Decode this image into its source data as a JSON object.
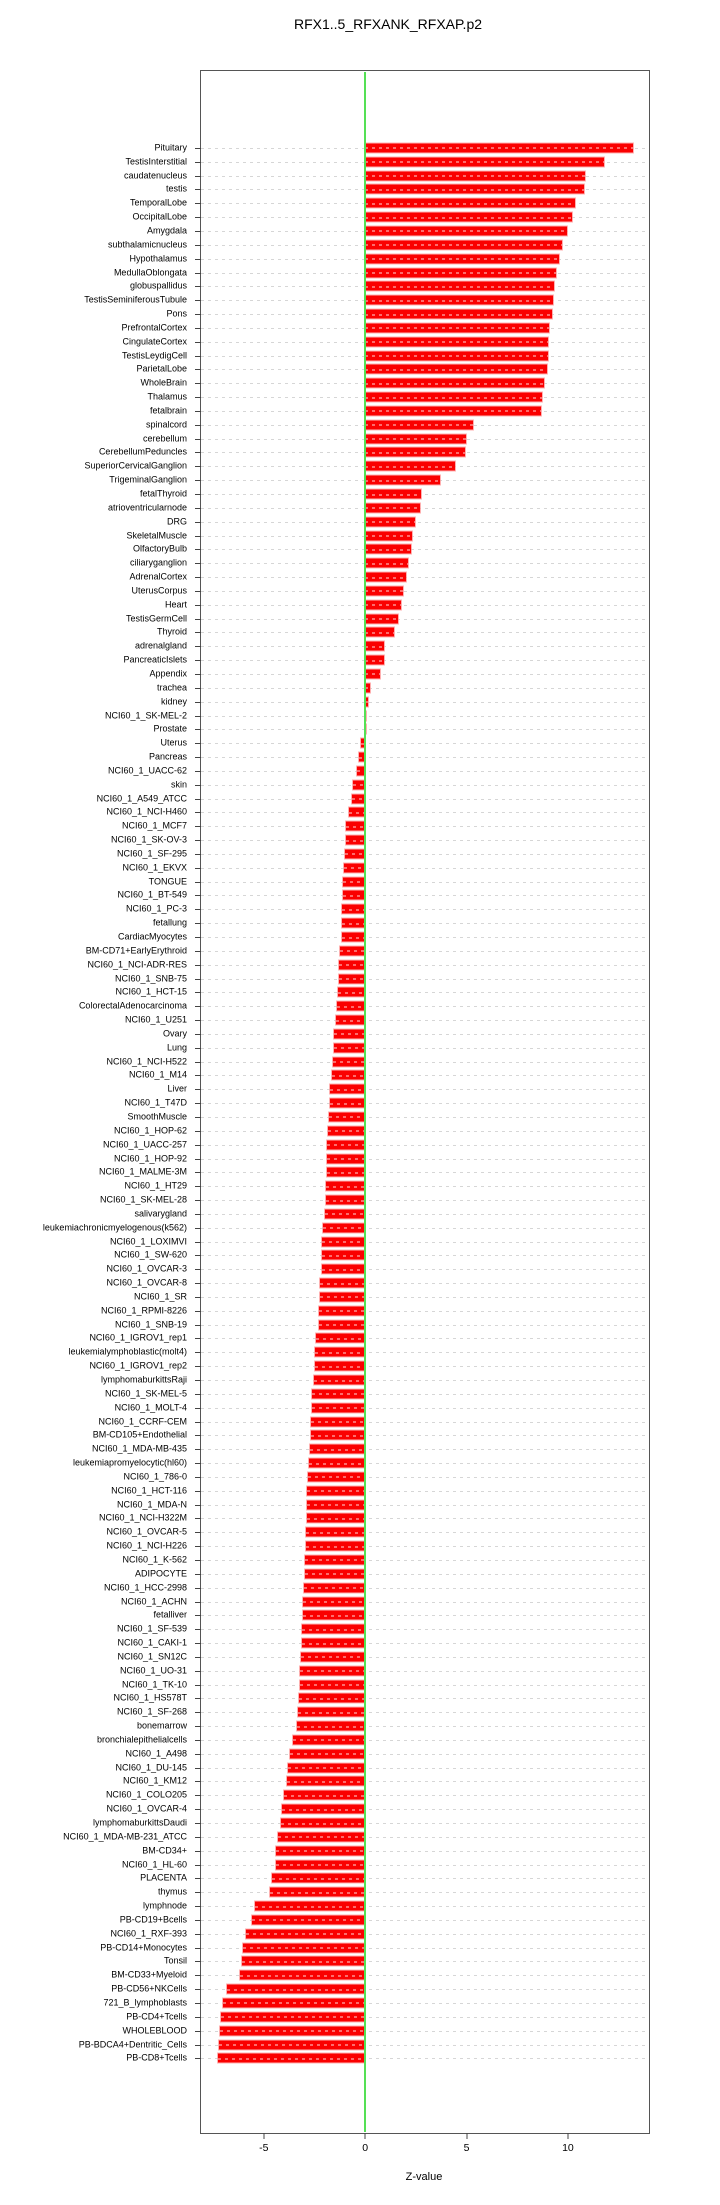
{
  "title": "RFX1..5_RFXANK_RFXAP.p2",
  "chart_data": {
    "type": "bar",
    "orientation": "horizontal",
    "title": "RFX1..5_RFXANK_RFXAP.p2",
    "xlabel": "Z-value",
    "ylabel": "",
    "xlim": [
      -8.1,
      14.0
    ],
    "x_ticks": [
      -5,
      0,
      5,
      10
    ],
    "grid": true,
    "legend": false,
    "bar_color": "#fa0000",
    "bar_edge_color": "#ff9696",
    "zero_line_color": "#55e055",
    "grid_color": "#d6d6d6",
    "categories": [
      "Pituitary",
      "TestisInterstitial",
      "caudatenucleus",
      "testis",
      "TemporalLobe",
      "OccipitalLobe",
      "Amygdala",
      "subthalamicnucleus",
      "Hypothalamus",
      "MedullaOblongata",
      "globuspallidus",
      "TestisSeminiferousTubule",
      "Pons",
      "PrefrontalCortex",
      "CingulateCortex",
      "TestisLeydigCell",
      "ParietalLobe",
      "WholeBrain",
      "Thalamus",
      "fetalbrain",
      "spinalcord",
      "cerebellum",
      "CerebellumPeduncles",
      "SuperiorCervicalGanglion",
      "TrigeminalGanglion",
      "fetalThyroid",
      "atrioventricularnode",
      "DRG",
      "SkeletalMuscle",
      "OlfactoryBulb",
      "ciliaryganglion",
      "AdrenalCortex",
      "UterusCorpus",
      "Heart",
      "TestisGermCell",
      "Thyroid",
      "adrenalgland",
      "PancreaticIslets",
      "Appendix",
      "trachea",
      "kidney",
      "NCI60_1_SK-MEL-2",
      "Prostate",
      "Uterus",
      "Pancreas",
      "NCI60_1_UACC-62",
      "skin",
      "NCI60_1_A549_ATCC",
      "NCI60_1_NCI-H460",
      "NCI60_1_MCF7",
      "NCI60_1_SK-OV-3",
      "NCI60_1_SF-295",
      "NCI60_1_EKVX",
      "TONGUE",
      "NCI60_1_BT-549",
      "NCI60_1_PC-3",
      "fetallung",
      "CardiacMyocytes",
      "BM-CD71+EarlyErythroid",
      "NCI60_1_NCI-ADR-RES",
      "NCI60_1_SNB-75",
      "NCI60_1_HCT-15",
      "ColorectalAdenocarcinoma",
      "NCI60_1_U251",
      "Ovary",
      "Lung",
      "NCI60_1_NCI-H522",
      "NCI60_1_M14",
      "Liver",
      "NCI60_1_T47D",
      "SmoothMuscle",
      "NCI60_1_HOP-62",
      "NCI60_1_UACC-257",
      "NCI60_1_HOP-92",
      "NCI60_1_MALME-3M",
      "NCI60_1_HT29",
      "NCI60_1_SK-MEL-28",
      "salivarygland",
      "leukemiachronicmyelogenous(k562)",
      "NCI60_1_LOXIMVI",
      "NCI60_1_SW-620",
      "NCI60_1_OVCAR-3",
      "NCI60_1_OVCAR-8",
      "NCI60_1_SR",
      "NCI60_1_RPMI-8226",
      "NCI60_1_SNB-19",
      "NCI60_1_IGROV1_rep1",
      "leukemialymphoblastic(molt4)",
      "NCI60_1_IGROV1_rep2",
      "lymphomaburkittsRaji",
      "NCI60_1_SK-MEL-5",
      "NCI60_1_MOLT-4",
      "NCI60_1_CCRF-CEM",
      "BM-CD105+Endothelial",
      "NCI60_1_MDA-MB-435",
      "leukemiapromyelocytic(hl60)",
      "NCI60_1_786-0",
      "NCI60_1_HCT-116",
      "NCI60_1_MDA-N",
      "NCI60_1_NCI-H322M",
      "NCI60_1_OVCAR-5",
      "NCI60_1_NCI-H226",
      "NCI60_1_K-562",
      "ADIPOCYTE",
      "NCI60_1_HCC-2998",
      "NCI60_1_ACHN",
      "fetalliver",
      "NCI60_1_SF-539",
      "NCI60_1_CAKI-1",
      "NCI60_1_SN12C",
      "NCI60_1_UO-31",
      "NCI60_1_TK-10",
      "NCI60_1_HS578T",
      "NCI60_1_SF-268",
      "bonemarrow",
      "bronchialepithelialcells",
      "NCI60_1_A498",
      "NCI60_1_DU-145",
      "NCI60_1_KM12",
      "NCI60_1_COLO205",
      "NCI60_1_OVCAR-4",
      "lymphomaburkittsDaudi",
      "NCI60_1_MDA-MB-231_ATCC",
      "BM-CD34+",
      "NCI60_1_HL-60",
      "PLACENTA",
      "thymus",
      "lymphnode",
      "PB-CD19+Bcells",
      "NCI60_1_RXF-393",
      "PB-CD14+Monocytes",
      "Tonsil",
      "BM-CD33+Myeloid",
      "PB-CD56+NKCells",
      "721_B_lymphoblasts",
      "PB-CD4+Tcells",
      "WHOLEBLOOD",
      "PB-BDCA4+Dentritic_Cells",
      "PB-CD8+Tcells"
    ],
    "values": [
      13.2,
      11.8,
      10.85,
      10.8,
      10.35,
      10.2,
      9.95,
      9.7,
      9.55,
      9.4,
      9.3,
      9.26,
      9.2,
      9.05,
      9.02,
      9.0,
      8.98,
      8.8,
      8.72,
      8.65,
      5.3,
      4.95,
      4.9,
      4.45,
      3.7,
      2.75,
      2.7,
      2.45,
      2.32,
      2.25,
      2.1,
      2.0,
      1.86,
      1.77,
      1.64,
      1.4,
      0.95,
      0.92,
      0.72,
      0.25,
      0.12,
      0.06,
      -0.02,
      -0.2,
      -0.33,
      -0.38,
      -0.62,
      -0.65,
      -0.82,
      -0.95,
      -0.97,
      -1.0,
      -1.04,
      -1.08,
      -1.1,
      -1.12,
      -1.14,
      -1.16,
      -1.26,
      -1.27,
      -1.29,
      -1.35,
      -1.41,
      -1.43,
      -1.52,
      -1.54,
      -1.58,
      -1.63,
      -1.73,
      -1.74,
      -1.81,
      -1.84,
      -1.87,
      -1.89,
      -1.9,
      -1.92,
      -1.95,
      -1.97,
      -2.08,
      -2.12,
      -2.13,
      -2.15,
      -2.21,
      -2.22,
      -2.26,
      -2.28,
      -2.41,
      -2.49,
      -2.5,
      -2.53,
      -2.62,
      -2.64,
      -2.68,
      -2.69,
      -2.71,
      -2.78,
      -2.8,
      -2.86,
      -2.87,
      -2.89,
      -2.9,
      -2.91,
      -2.96,
      -2.98,
      -3.04,
      -3.08,
      -3.09,
      -3.12,
      -3.13,
      -3.18,
      -3.2,
      -3.22,
      -3.26,
      -3.32,
      -3.34,
      -3.58,
      -3.7,
      -3.82,
      -3.85,
      -4.0,
      -4.1,
      -4.15,
      -4.3,
      -4.38,
      -4.4,
      -4.6,
      -4.72,
      -5.45,
      -5.6,
      -5.9,
      -6.02,
      -6.1,
      -6.2,
      -6.8,
      -7.0,
      -7.1,
      -7.15,
      -7.2,
      -7.25
    ]
  }
}
